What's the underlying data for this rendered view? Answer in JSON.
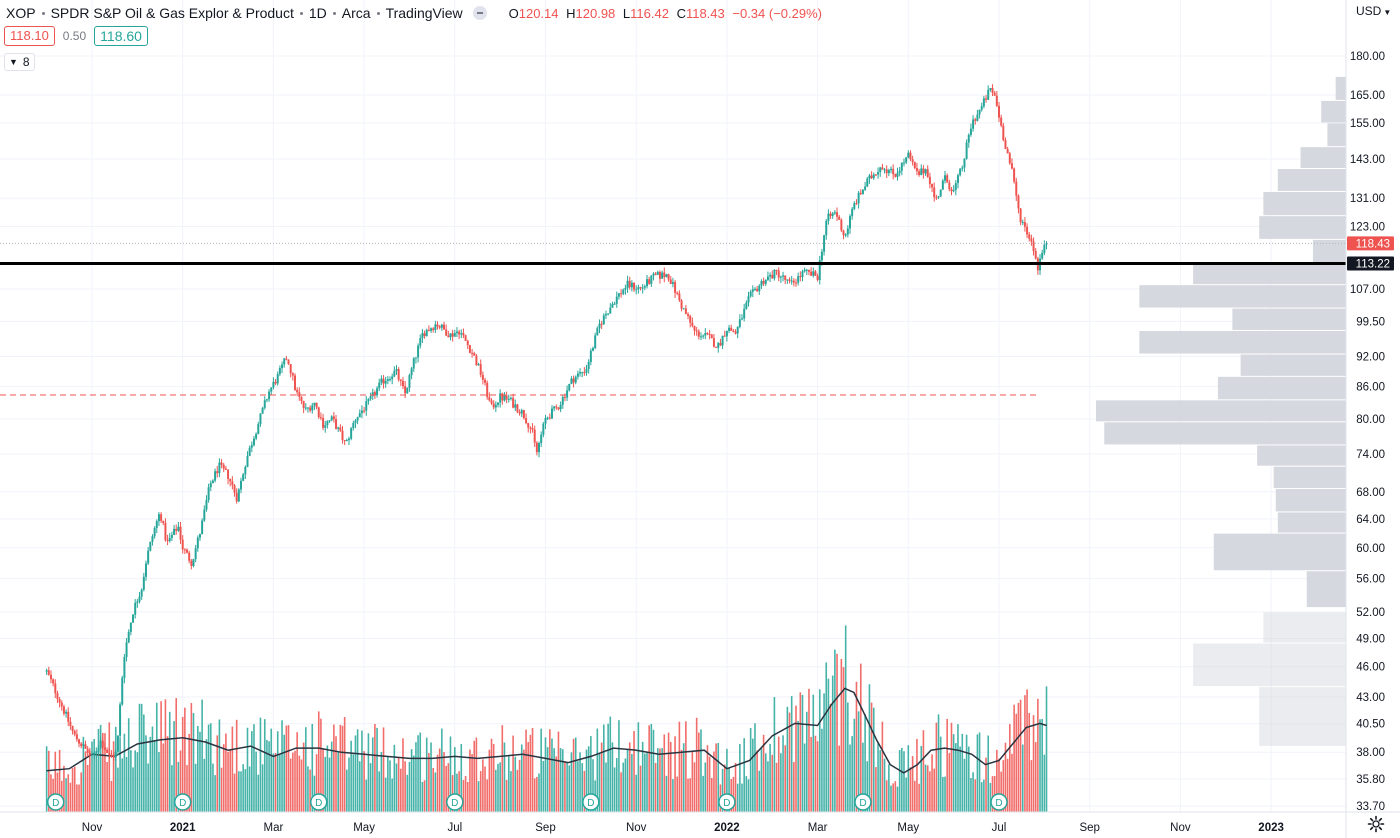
{
  "header": {
    "symbol": "XOP",
    "name": "SPDR S&P Oil & Gas Explor & Product",
    "interval": "1D",
    "exchange": "Arca",
    "source": "TradingView",
    "ohlc": {
      "o_label": "O",
      "o_value": "120.14",
      "h_label": "H",
      "h_value": "120.98",
      "l_label": "L",
      "l_value": "116.42",
      "c_label": "C",
      "c_value": "118.43",
      "change": "−0.34 (−0.29%)"
    },
    "bid": "118.10",
    "spread": "0.50",
    "ask": "118.60",
    "indicators_count": "8",
    "currency": "USD"
  },
  "colors": {
    "up": "#26a69a",
    "down": "#ef5350",
    "support_line": "#000000",
    "dashed_line": "#ef5350",
    "volume_ma": "#2a3440",
    "profile": "#d1d4dc"
  },
  "icons": [
    "eye-icon",
    "chevron-down-icon",
    "gear-icon",
    "dividend-marker"
  ],
  "chart_data": {
    "type": "candlestick",
    "y_scale": "log",
    "ylim": [
      33.7,
      190
    ],
    "y_ticks": [
      "180.00",
      "165.00",
      "155.00",
      "143.00",
      "131.00",
      "123.00",
      "113.00",
      "107.00",
      "99.50",
      "92.00",
      "86.00",
      "80.00",
      "74.00",
      "68.00",
      "64.00",
      "60.00",
      "56.00",
      "52.00",
      "49.00",
      "46.00",
      "43.00",
      "40.50",
      "38.00",
      "35.80",
      "33.70"
    ],
    "x_ticks": [
      "Nov",
      "2021",
      "Mar",
      "May",
      "Jul",
      "Sep",
      "Nov",
      "2022",
      "Mar",
      "May",
      "Jul",
      "Sep",
      "Nov",
      "2023"
    ],
    "x_tick_months": [
      10,
      12,
      14,
      16,
      18,
      20,
      22,
      24,
      26,
      28,
      30,
      32,
      34,
      36
    ],
    "x_start_month": 9.0,
    "price_path": [
      [
        9.0,
        45.5
      ],
      [
        9.3,
        42.5
      ],
      [
        9.6,
        39.5
      ],
      [
        9.9,
        38.0
      ],
      [
        10.0,
        37.5
      ],
      [
        10.2,
        39.0
      ],
      [
        10.4,
        37.5
      ],
      [
        10.55,
        38.0
      ],
      [
        10.7,
        47.0
      ],
      [
        10.9,
        52.0
      ],
      [
        11.1,
        55.0
      ],
      [
        11.2,
        58.5
      ],
      [
        11.35,
        62.0
      ],
      [
        11.5,
        65.0
      ],
      [
        11.65,
        60.5
      ],
      [
        11.9,
        63.0
      ],
      [
        12.0,
        60.0
      ],
      [
        12.2,
        58.0
      ],
      [
        12.4,
        62.5
      ],
      [
        12.6,
        69.0
      ],
      [
        12.8,
        72.0
      ],
      [
        13.0,
        70.5
      ],
      [
        13.2,
        67.0
      ],
      [
        13.4,
        73.0
      ],
      [
        13.7,
        80.0
      ],
      [
        13.9,
        85.0
      ],
      [
        14.1,
        88.0
      ],
      [
        14.3,
        92.0
      ],
      [
        14.5,
        85.0
      ],
      [
        14.7,
        81.5
      ],
      [
        14.9,
        83.0
      ],
      [
        15.1,
        79.0
      ],
      [
        15.3,
        80.0
      ],
      [
        15.6,
        75.5
      ],
      [
        15.8,
        80.0
      ],
      [
        16.1,
        83.0
      ],
      [
        16.4,
        87.0
      ],
      [
        16.7,
        89.0
      ],
      [
        16.9,
        84.5
      ],
      [
        17.1,
        91.0
      ],
      [
        17.3,
        97.0
      ],
      [
        17.6,
        99.0
      ],
      [
        17.9,
        96.5
      ],
      [
        18.1,
        97.5
      ],
      [
        18.4,
        92.5
      ],
      [
        18.6,
        88.0
      ],
      [
        18.8,
        82.0
      ],
      [
        19.0,
        84.0
      ],
      [
        19.2,
        83.5
      ],
      [
        19.5,
        81.0
      ],
      [
        19.7,
        78.0
      ],
      [
        19.8,
        74.0
      ],
      [
        20.0,
        80.0
      ],
      [
        20.3,
        82.5
      ],
      [
        20.6,
        87.5
      ],
      [
        20.9,
        89.5
      ],
      [
        21.2,
        99.0
      ],
      [
        21.5,
        104.0
      ],
      [
        21.8,
        108.0
      ],
      [
        22.1,
        107.0
      ],
      [
        22.4,
        110.0
      ],
      [
        22.7,
        110.5
      ],
      [
        23.0,
        103.0
      ],
      [
        23.3,
        97.0
      ],
      [
        23.6,
        96.0
      ],
      [
        23.8,
        94.0
      ],
      [
        24.0,
        98.0
      ],
      [
        24.2,
        97.0
      ],
      [
        24.5,
        105.0
      ],
      [
        24.8,
        109.0
      ],
      [
        25.1,
        111.0
      ],
      [
        25.4,
        108.0
      ],
      [
        25.7,
        111.0
      ],
      [
        26.0,
        110.0
      ],
      [
        26.2,
        125.0
      ],
      [
        26.4,
        127.0
      ],
      [
        26.6,
        120.0
      ],
      [
        26.8,
        129.0
      ],
      [
        27.1,
        136.0
      ],
      [
        27.4,
        141.0
      ],
      [
        27.7,
        138.0
      ],
      [
        28.0,
        144.0
      ],
      [
        28.2,
        138.0
      ],
      [
        28.4,
        140.0
      ],
      [
        28.6,
        130.0
      ],
      [
        28.8,
        137.0
      ],
      [
        29.0,
        133.0
      ],
      [
        29.2,
        141.0
      ],
      [
        29.4,
        155.0
      ],
      [
        29.6,
        160.0
      ],
      [
        29.8,
        167.0
      ],
      [
        29.9,
        165.0
      ],
      [
        30.1,
        150.0
      ],
      [
        30.3,
        138.0
      ],
      [
        30.45,
        126.0
      ],
      [
        30.6,
        122.0
      ],
      [
        30.75,
        118.0
      ],
      [
        30.85,
        112.0
      ],
      [
        30.95,
        116.0
      ],
      [
        31.05,
        118.43
      ]
    ],
    "levels": [
      {
        "price": 113.22,
        "label": "113.22",
        "style": "solid"
      },
      {
        "price": 84.4,
        "label": "",
        "style": "dashed"
      }
    ],
    "last_price": {
      "value": 118.43,
      "label": "118.43"
    },
    "dividend_months": [
      9.2,
      12.0,
      15.0,
      18.0,
      21.0,
      24.0,
      27.0,
      30.0
    ],
    "dividend_label": "D",
    "volume_profile": [
      {
        "lo": 163.0,
        "hi": 172.0,
        "vol": 0.05
      },
      {
        "lo": 155.0,
        "hi": 163.0,
        "vol": 0.12
      },
      {
        "lo": 147.0,
        "hi": 155.0,
        "vol": 0.09
      },
      {
        "lo": 140.0,
        "hi": 147.0,
        "vol": 0.22
      },
      {
        "lo": 133.0,
        "hi": 140.0,
        "vol": 0.33
      },
      {
        "lo": 126.0,
        "hi": 133.0,
        "vol": 0.4
      },
      {
        "lo": 119.5,
        "hi": 126.0,
        "vol": 0.42
      },
      {
        "lo": 113.5,
        "hi": 119.5,
        "vol": 0.16
      },
      {
        "lo": 108.0,
        "hi": 113.3,
        "vol": 0.74
      },
      {
        "lo": 102.5,
        "hi": 108.0,
        "vol": 1.0
      },
      {
        "lo": 97.5,
        "hi": 102.5,
        "vol": 0.55
      },
      {
        "lo": 92.5,
        "hi": 97.5,
        "vol": 1.0
      },
      {
        "lo": 88.0,
        "hi": 92.5,
        "vol": 0.51
      },
      {
        "lo": 83.5,
        "hi": 88.0,
        "vol": 0.62
      },
      {
        "lo": 79.5,
        "hi": 83.5,
        "vol": 1.21
      },
      {
        "lo": 75.5,
        "hi": 79.5,
        "vol": 1.17
      },
      {
        "lo": 72.0,
        "hi": 75.5,
        "vol": 0.43
      },
      {
        "lo": 68.5,
        "hi": 72.0,
        "vol": 0.35
      },
      {
        "lo": 65.0,
        "hi": 68.5,
        "vol": 0.34
      },
      {
        "lo": 62.0,
        "hi": 65.0,
        "vol": 0.33
      },
      {
        "lo": 57.0,
        "hi": 62.0,
        "vol": 0.64
      },
      {
        "lo": 52.5,
        "hi": 57.0,
        "vol": 0.19
      },
      {
        "lo": 48.5,
        "hi": 52.0,
        "vol": 0.4
      },
      {
        "lo": 44.0,
        "hi": 48.5,
        "vol": 0.74
      },
      {
        "lo": 38.5,
        "hi": 44.0,
        "vol": 0.42
      }
    ],
    "volume": {
      "max_volume": 1.0,
      "ma_path": [
        [
          9.0,
          0.2
        ],
        [
          9.5,
          0.21
        ],
        [
          10.0,
          0.28
        ],
        [
          10.5,
          0.27
        ],
        [
          11.0,
          0.33
        ],
        [
          11.5,
          0.35
        ],
        [
          12.0,
          0.36
        ],
        [
          12.5,
          0.34
        ],
        [
          13.0,
          0.3
        ],
        [
          13.5,
          0.32
        ],
        [
          14.0,
          0.27
        ],
        [
          14.5,
          0.31
        ],
        [
          15.0,
          0.31
        ],
        [
          15.5,
          0.29
        ],
        [
          16.0,
          0.28
        ],
        [
          16.5,
          0.27
        ],
        [
          17.0,
          0.26
        ],
        [
          17.5,
          0.26
        ],
        [
          18.0,
          0.27
        ],
        [
          18.5,
          0.26
        ],
        [
          19.0,
          0.27
        ],
        [
          19.5,
          0.28
        ],
        [
          20.0,
          0.26
        ],
        [
          20.5,
          0.24
        ],
        [
          21.0,
          0.27
        ],
        [
          21.5,
          0.31
        ],
        [
          22.0,
          0.3
        ],
        [
          22.5,
          0.28
        ],
        [
          23.0,
          0.29
        ],
        [
          23.5,
          0.3
        ],
        [
          24.0,
          0.21
        ],
        [
          24.5,
          0.25
        ],
        [
          25.0,
          0.37
        ],
        [
          25.5,
          0.43
        ],
        [
          26.0,
          0.42
        ],
        [
          26.3,
          0.52
        ],
        [
          26.6,
          0.6
        ],
        [
          26.8,
          0.58
        ],
        [
          27.0,
          0.49
        ],
        [
          27.3,
          0.35
        ],
        [
          27.6,
          0.23
        ],
        [
          27.9,
          0.19
        ],
        [
          28.2,
          0.23
        ],
        [
          28.5,
          0.3
        ],
        [
          28.8,
          0.31
        ],
        [
          29.1,
          0.3
        ],
        [
          29.4,
          0.28
        ],
        [
          29.7,
          0.23
        ],
        [
          30.0,
          0.25
        ],
        [
          30.3,
          0.33
        ],
        [
          30.6,
          0.41
        ],
        [
          30.9,
          0.43
        ],
        [
          31.05,
          0.42
        ]
      ]
    }
  }
}
